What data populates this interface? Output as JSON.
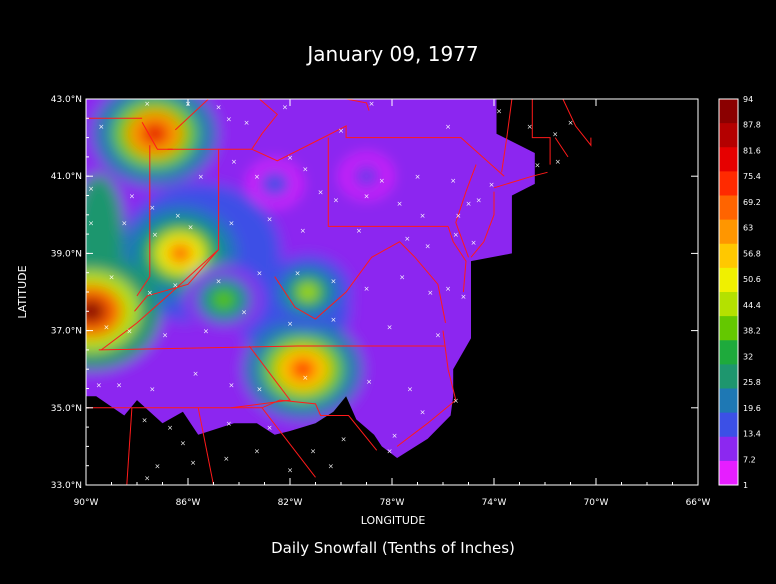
{
  "chart_data": {
    "type": "heatmap",
    "title": "January 09, 1977",
    "subtitle": "Daily Snowfall (Tenths of Inches)",
    "xlabel": "LONGITUDE",
    "ylabel": "LATITUDE",
    "xlim": [
      -90,
      -66
    ],
    "ylim": [
      33,
      43
    ],
    "x_ticks": [
      "90°W",
      "86°W",
      "82°W",
      "78°W",
      "74°W",
      "70°W",
      "66°W"
    ],
    "y_ticks": [
      "33.0°N",
      "35.0°N",
      "37.0°N",
      "39.0°N",
      "41.0°N",
      "43.0°N"
    ],
    "colorbar": {
      "labels": [
        "94",
        "87.8",
        "81.6",
        "75.4",
        "69.2",
        "63",
        "56.8",
        "50.6",
        "44.4",
        "38.2",
        "32",
        "25.8",
        "19.6",
        "13.4",
        "7.2",
        "1"
      ],
      "colors": [
        "#8b0000",
        "#b40000",
        "#e60000",
        "#ff2a00",
        "#ff6400",
        "#ff9600",
        "#ffc800",
        "#f0f000",
        "#b4e100",
        "#64c800",
        "#1eaa3c",
        "#1e966e",
        "#1e78b4",
        "#3c50e6",
        "#8c28f0",
        "#e61eff"
      ]
    },
    "snow_maxima": [
      {
        "lon": -87.3,
        "lat": 42.1,
        "value": 80
      },
      {
        "lon": -86.3,
        "lat": 39.0,
        "value": 70
      },
      {
        "lon": -89.8,
        "lat": 37.5,
        "value": 94
      },
      {
        "lon": -81.5,
        "lat": 36.0,
        "value": 75
      },
      {
        "lon": -81.3,
        "lat": 38.0,
        "value": 45
      },
      {
        "lon": -84.6,
        "lat": 37.8,
        "value": 40
      },
      {
        "lon": -82.6,
        "lat": 40.8,
        "value": 15
      },
      {
        "lon": -79.0,
        "lat": 41.0,
        "value": 13
      }
    ],
    "stations": [
      [
        -89.4,
        42.3
      ],
      [
        -87.6,
        42.9
      ],
      [
        -86.0,
        42.9
      ],
      [
        -84.8,
        42.8
      ],
      [
        -84.4,
        42.5
      ],
      [
        -83.7,
        42.4
      ],
      [
        -82.2,
        42.8
      ],
      [
        -80.0,
        42.2
      ],
      [
        -78.8,
        42.9
      ],
      [
        -75.8,
        42.3
      ],
      [
        -73.8,
        42.7
      ],
      [
        -72.6,
        42.3
      ],
      [
        -71.6,
        42.1
      ],
      [
        -71.0,
        42.4
      ],
      [
        -71.5,
        41.4
      ],
      [
        -72.3,
        41.3
      ],
      [
        -74.1,
        40.8
      ],
      [
        -89.8,
        40.7
      ],
      [
        -88.2,
        40.5
      ],
      [
        -87.4,
        40.2
      ],
      [
        -86.4,
        40.0
      ],
      [
        -85.5,
        41.0
      ],
      [
        -84.2,
        41.4
      ],
      [
        -83.3,
        41.0
      ],
      [
        -82.0,
        41.5
      ],
      [
        -81.4,
        41.2
      ],
      [
        -80.8,
        40.6
      ],
      [
        -80.2,
        40.4
      ],
      [
        -79.0,
        40.5
      ],
      [
        -78.4,
        40.9
      ],
      [
        -77.0,
        41.0
      ],
      [
        -75.6,
        40.9
      ],
      [
        -75.0,
        40.3
      ],
      [
        -75.4,
        40.0
      ],
      [
        -74.6,
        40.4
      ],
      [
        -76.8,
        40.0
      ],
      [
        -77.7,
        40.3
      ],
      [
        -89.8,
        39.8
      ],
      [
        -88.5,
        39.8
      ],
      [
        -87.3,
        39.5
      ],
      [
        -85.9,
        39.7
      ],
      [
        -84.3,
        39.8
      ],
      [
        -82.8,
        39.9
      ],
      [
        -81.5,
        39.6
      ],
      [
        -79.3,
        39.6
      ],
      [
        -77.4,
        39.4
      ],
      [
        -76.6,
        39.2
      ],
      [
        -75.5,
        39.5
      ],
      [
        -74.8,
        39.3
      ],
      [
        -89.0,
        38.4
      ],
      [
        -87.5,
        38.0
      ],
      [
        -86.5,
        38.2
      ],
      [
        -84.8,
        38.3
      ],
      [
        -83.2,
        38.5
      ],
      [
        -81.7,
        38.5
      ],
      [
        -80.3,
        38.3
      ],
      [
        -79.0,
        38.1
      ],
      [
        -77.6,
        38.4
      ],
      [
        -76.5,
        38.0
      ],
      [
        -75.8,
        38.1
      ],
      [
        -75.2,
        37.9
      ],
      [
        -89.2,
        37.1
      ],
      [
        -88.3,
        37.0
      ],
      [
        -86.9,
        36.9
      ],
      [
        -85.3,
        37.0
      ],
      [
        -83.8,
        37.5
      ],
      [
        -82.0,
        37.2
      ],
      [
        -80.3,
        37.3
      ],
      [
        -78.1,
        37.1
      ],
      [
        -76.2,
        36.9
      ],
      [
        -89.5,
        35.6
      ],
      [
        -88.7,
        35.6
      ],
      [
        -87.4,
        35.5
      ],
      [
        -85.7,
        35.9
      ],
      [
        -84.3,
        35.6
      ],
      [
        -83.2,
        35.5
      ],
      [
        -81.4,
        35.8
      ],
      [
        -78.9,
        35.7
      ],
      [
        -77.3,
        35.5
      ],
      [
        -76.8,
        34.9
      ],
      [
        -75.5,
        35.2
      ],
      [
        -87.7,
        34.7
      ],
      [
        -86.7,
        34.5
      ],
      [
        -86.2,
        34.1
      ],
      [
        -84.4,
        34.6
      ],
      [
        -82.8,
        34.5
      ],
      [
        -81.1,
        33.9
      ],
      [
        -79.9,
        34.2
      ],
      [
        -77.9,
        34.3
      ],
      [
        -87.6,
        33.2
      ],
      [
        -87.2,
        33.5
      ],
      [
        -85.8,
        33.6
      ],
      [
        -84.5,
        33.7
      ],
      [
        -83.3,
        33.9
      ],
      [
        -82.0,
        33.4
      ],
      [
        -80.4,
        33.5
      ],
      [
        -78.1,
        33.9
      ]
    ]
  }
}
